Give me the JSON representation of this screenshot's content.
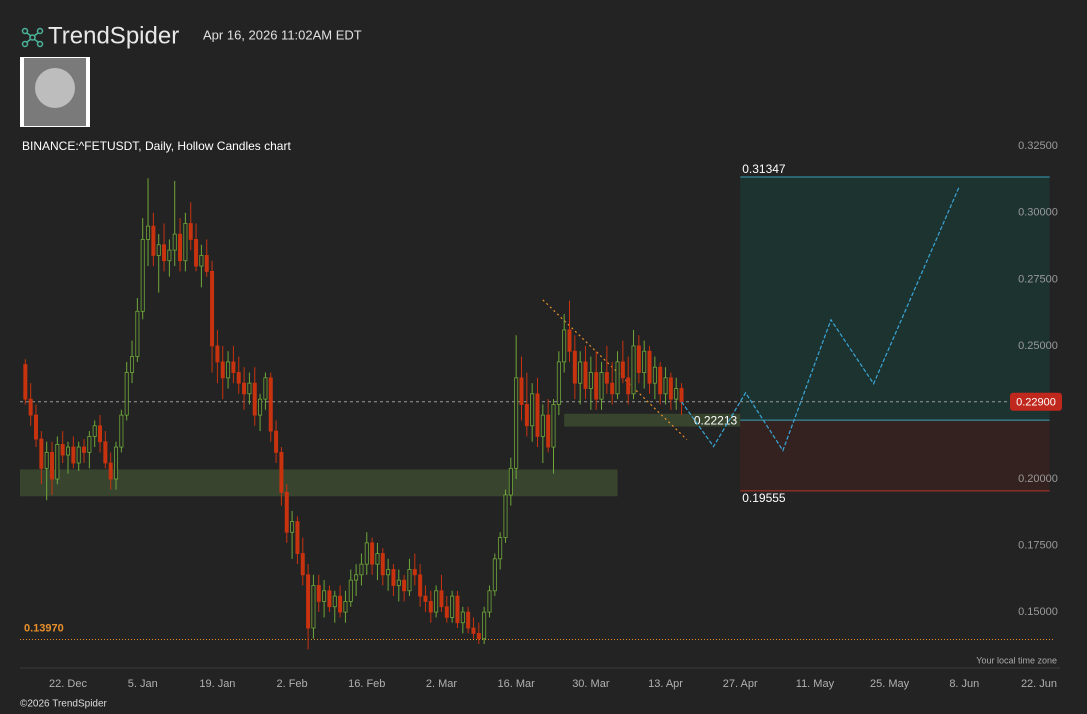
{
  "brand": "TrendSpider",
  "timestamp": "Apr 16, 2026 11:02AM EDT",
  "footer": "©2026 TrendSpider",
  "timezone_note": "Your local time zone",
  "chart_data": {
    "type": "candlestick",
    "title": "BINANCE:^FETUSDT, Daily, Hollow Candles chart",
    "up_color": "#6fa83a",
    "down_color": "#c8330f",
    "xlim": [
      "13. Dec",
      "25. Jun"
    ],
    "ylim": [
      0.135,
      0.333
    ],
    "yticks": [
      {
        "value": 0.15,
        "label": "0.15000"
      },
      {
        "value": 0.175,
        "label": "0.17500"
      },
      {
        "value": 0.2,
        "label": "0.20000"
      },
      {
        "value": 0.25,
        "label": "0.25000"
      },
      {
        "value": 0.275,
        "label": "0.27500"
      },
      {
        "value": 0.3,
        "label": "0.30000"
      },
      {
        "value": 0.325,
        "label": "0.32500"
      }
    ],
    "xticks": [
      "22. Dec",
      "5. Jan",
      "19. Jan",
      "2. Feb",
      "16. Feb",
      "2. Mar",
      "16. Mar",
      "30. Mar",
      "13. Apr",
      "27. Apr",
      "11. May",
      "25. May",
      "8. Jun",
      "22. Jun"
    ],
    "x": [
      "14. Dec",
      "15. Dec",
      "16. Dec",
      "17. Dec",
      "18. Dec",
      "19. Dec",
      "20. Dec",
      "21. Dec",
      "22. Dec",
      "23. Dec",
      "24. Dec",
      "25. Dec",
      "26. Dec",
      "27. Dec",
      "28. Dec",
      "29. Dec",
      "30. Dec",
      "31. Dec",
      "1. Jan",
      "2. Jan",
      "3. Jan",
      "4. Jan",
      "5. Jan",
      "6. Jan",
      "7. Jan",
      "8. Jan",
      "9. Jan",
      "10. Jan",
      "11. Jan",
      "12. Jan",
      "13. Jan",
      "14. Jan",
      "15. Jan",
      "16. Jan",
      "17. Jan",
      "18. Jan",
      "19. Jan",
      "20. Jan",
      "21. Jan",
      "22. Jan",
      "23. Jan",
      "24. Jan",
      "25. Jan",
      "26. Jan",
      "27. Jan",
      "28. Jan",
      "29. Jan",
      "30. Jan",
      "31. Jan",
      "1. Feb",
      "2. Feb",
      "3. Feb",
      "4. Feb",
      "5. Feb",
      "6. Feb",
      "7. Feb",
      "8. Feb",
      "9. Feb",
      "10. Feb",
      "11. Feb",
      "12. Feb",
      "13. Feb",
      "14. Feb",
      "15. Feb",
      "16. Feb",
      "17. Feb",
      "18. Feb",
      "19. Feb",
      "20. Feb",
      "21. Feb",
      "22. Feb",
      "23. Feb",
      "24. Feb",
      "25. Feb",
      "26. Feb",
      "27. Feb",
      "28. Feb",
      "1. Mar",
      "2. Mar",
      "3. Mar",
      "4. Mar",
      "5. Mar",
      "6. Mar",
      "7. Mar",
      "8. Mar",
      "9. Mar",
      "10. Mar",
      "11. Mar",
      "12. Mar",
      "13. Mar",
      "14. Mar",
      "15. Mar",
      "16. Mar",
      "17. Mar",
      "18. Mar",
      "19. Mar",
      "20. Mar",
      "21. Mar",
      "22. Mar",
      "23. Mar",
      "24. Mar",
      "25. Mar",
      "26. Mar",
      "27. Mar",
      "28. Mar",
      "29. Mar",
      "30. Mar",
      "31. Mar",
      "1. Apr",
      "2. Apr",
      "3. Apr",
      "4. Apr",
      "5. Apr",
      "6. Apr",
      "7. Apr",
      "8. Apr",
      "9. Apr",
      "10. Apr",
      "11. Apr",
      "12. Apr",
      "13. Apr",
      "14. Apr",
      "15. Apr",
      "16. Apr"
    ],
    "ohlc": [
      [
        0.243,
        0.245,
        0.228,
        0.23
      ],
      [
        0.23,
        0.236,
        0.22,
        0.224
      ],
      [
        0.224,
        0.228,
        0.212,
        0.215
      ],
      [
        0.215,
        0.218,
        0.198,
        0.204
      ],
      [
        0.204,
        0.214,
        0.192,
        0.21
      ],
      [
        0.21,
        0.214,
        0.194,
        0.2
      ],
      [
        0.2,
        0.216,
        0.198,
        0.213
      ],
      [
        0.213,
        0.218,
        0.206,
        0.209
      ],
      [
        0.209,
        0.214,
        0.202,
        0.212
      ],
      [
        0.212,
        0.216,
        0.204,
        0.206
      ],
      [
        0.206,
        0.214,
        0.203,
        0.212
      ],
      [
        0.212,
        0.215,
        0.206,
        0.21
      ],
      [
        0.21,
        0.218,
        0.204,
        0.216
      ],
      [
        0.216,
        0.222,
        0.212,
        0.22
      ],
      [
        0.22,
        0.224,
        0.21,
        0.214
      ],
      [
        0.214,
        0.218,
        0.204,
        0.206
      ],
      [
        0.206,
        0.21,
        0.196,
        0.2
      ],
      [
        0.2,
        0.214,
        0.196,
        0.212
      ],
      [
        0.212,
        0.226,
        0.21,
        0.224
      ],
      [
        0.224,
        0.244,
        0.222,
        0.24
      ],
      [
        0.24,
        0.252,
        0.236,
        0.246
      ],
      [
        0.246,
        0.268,
        0.244,
        0.263
      ],
      [
        0.263,
        0.298,
        0.26,
        0.29
      ],
      [
        0.29,
        0.313,
        0.28,
        0.295
      ],
      [
        0.295,
        0.3,
        0.28,
        0.284
      ],
      [
        0.284,
        0.292,
        0.27,
        0.288
      ],
      [
        0.288,
        0.296,
        0.278,
        0.282
      ],
      [
        0.282,
        0.29,
        0.276,
        0.286
      ],
      [
        0.286,
        0.312,
        0.28,
        0.292
      ],
      [
        0.292,
        0.298,
        0.278,
        0.282
      ],
      [
        0.282,
        0.3,
        0.278,
        0.296
      ],
      [
        0.296,
        0.304,
        0.286,
        0.29
      ],
      [
        0.29,
        0.296,
        0.278,
        0.28
      ],
      [
        0.28,
        0.288,
        0.272,
        0.284
      ],
      [
        0.284,
        0.29,
        0.276,
        0.278
      ],
      [
        0.278,
        0.282,
        0.24,
        0.25
      ],
      [
        0.25,
        0.256,
        0.236,
        0.244
      ],
      [
        0.244,
        0.25,
        0.23,
        0.238
      ],
      [
        0.238,
        0.248,
        0.234,
        0.244
      ],
      [
        0.244,
        0.25,
        0.236,
        0.24
      ],
      [
        0.24,
        0.246,
        0.232,
        0.236
      ],
      [
        0.236,
        0.242,
        0.226,
        0.232
      ],
      [
        0.232,
        0.24,
        0.228,
        0.236
      ],
      [
        0.236,
        0.242,
        0.22,
        0.224
      ],
      [
        0.224,
        0.232,
        0.218,
        0.23
      ],
      [
        0.23,
        0.24,
        0.226,
        0.238
      ],
      [
        0.238,
        0.24,
        0.214,
        0.218
      ],
      [
        0.218,
        0.222,
        0.206,
        0.21
      ],
      [
        0.21,
        0.212,
        0.19,
        0.195
      ],
      [
        0.195,
        0.198,
        0.176,
        0.18
      ],
      [
        0.18,
        0.188,
        0.17,
        0.184
      ],
      [
        0.184,
        0.186,
        0.168,
        0.172
      ],
      [
        0.172,
        0.178,
        0.16,
        0.164
      ],
      [
        0.164,
        0.168,
        0.136,
        0.144
      ],
      [
        0.144,
        0.164,
        0.14,
        0.16
      ],
      [
        0.16,
        0.164,
        0.15,
        0.154
      ],
      [
        0.154,
        0.162,
        0.148,
        0.158
      ],
      [
        0.158,
        0.16,
        0.15,
        0.152
      ],
      [
        0.152,
        0.158,
        0.146,
        0.156
      ],
      [
        0.156,
        0.16,
        0.148,
        0.15
      ],
      [
        0.15,
        0.158,
        0.146,
        0.154
      ],
      [
        0.154,
        0.166,
        0.152,
        0.162
      ],
      [
        0.162,
        0.168,
        0.156,
        0.164
      ],
      [
        0.164,
        0.172,
        0.16,
        0.168
      ],
      [
        0.168,
        0.18,
        0.164,
        0.176
      ],
      [
        0.176,
        0.178,
        0.164,
        0.168
      ],
      [
        0.168,
        0.176,
        0.162,
        0.172
      ],
      [
        0.172,
        0.174,
        0.16,
        0.164
      ],
      [
        0.164,
        0.17,
        0.158,
        0.166
      ],
      [
        0.166,
        0.168,
        0.156,
        0.16
      ],
      [
        0.16,
        0.166,
        0.154,
        0.162
      ],
      [
        0.162,
        0.164,
        0.154,
        0.158
      ],
      [
        0.158,
        0.17,
        0.156,
        0.166
      ],
      [
        0.166,
        0.172,
        0.16,
        0.164
      ],
      [
        0.164,
        0.168,
        0.152,
        0.156
      ],
      [
        0.156,
        0.16,
        0.15,
        0.154
      ],
      [
        0.154,
        0.158,
        0.146,
        0.15
      ],
      [
        0.15,
        0.16,
        0.148,
        0.158
      ],
      [
        0.158,
        0.164,
        0.15,
        0.152
      ],
      [
        0.152,
        0.156,
        0.146,
        0.148
      ],
      [
        0.148,
        0.158,
        0.146,
        0.156
      ],
      [
        0.156,
        0.158,
        0.144,
        0.146
      ],
      [
        0.146,
        0.152,
        0.142,
        0.15
      ],
      [
        0.15,
        0.152,
        0.142,
        0.144
      ],
      [
        0.144,
        0.148,
        0.14,
        0.142
      ],
      [
        0.142,
        0.146,
        0.138,
        0.14
      ],
      [
        0.14,
        0.152,
        0.138,
        0.15
      ],
      [
        0.15,
        0.16,
        0.148,
        0.158
      ],
      [
        0.158,
        0.172,
        0.156,
        0.17
      ],
      [
        0.17,
        0.18,
        0.166,
        0.178
      ],
      [
        0.178,
        0.196,
        0.176,
        0.194
      ],
      [
        0.194,
        0.208,
        0.19,
        0.204
      ],
      [
        0.204,
        0.254,
        0.2,
        0.238
      ],
      [
        0.238,
        0.246,
        0.222,
        0.228
      ],
      [
        0.228,
        0.24,
        0.216,
        0.22
      ],
      [
        0.22,
        0.236,
        0.214,
        0.232
      ],
      [
        0.232,
        0.238,
        0.212,
        0.216
      ],
      [
        0.216,
        0.228,
        0.206,
        0.224
      ],
      [
        0.224,
        0.23,
        0.21,
        0.212
      ],
      [
        0.212,
        0.23,
        0.202,
        0.228
      ],
      [
        0.228,
        0.248,
        0.224,
        0.244
      ],
      [
        0.244,
        0.262,
        0.24,
        0.256
      ],
      [
        0.256,
        0.267,
        0.244,
        0.248
      ],
      [
        0.248,
        0.254,
        0.23,
        0.236
      ],
      [
        0.236,
        0.248,
        0.228,
        0.244
      ],
      [
        0.244,
        0.25,
        0.23,
        0.234
      ],
      [
        0.234,
        0.246,
        0.226,
        0.24
      ],
      [
        0.24,
        0.248,
        0.226,
        0.23
      ],
      [
        0.23,
        0.244,
        0.226,
        0.24
      ],
      [
        0.24,
        0.25,
        0.232,
        0.236
      ],
      [
        0.236,
        0.244,
        0.228,
        0.232
      ],
      [
        0.232,
        0.248,
        0.23,
        0.244
      ],
      [
        0.244,
        0.252,
        0.236,
        0.238
      ],
      [
        0.238,
        0.246,
        0.228,
        0.232
      ],
      [
        0.232,
        0.256,
        0.23,
        0.25
      ],
      [
        0.25,
        0.254,
        0.236,
        0.24
      ],
      [
        0.24,
        0.252,
        0.234,
        0.248
      ],
      [
        0.248,
        0.25,
        0.232,
        0.236
      ],
      [
        0.236,
        0.246,
        0.23,
        0.242
      ],
      [
        0.242,
        0.244,
        0.228,
        0.232
      ],
      [
        0.232,
        0.242,
        0.228,
        0.238
      ],
      [
        0.238,
        0.24,
        0.226,
        0.23
      ],
      [
        0.23,
        0.238,
        0.226,
        0.234
      ],
      [
        0.234,
        0.236,
        0.224,
        0.229
      ]
    ],
    "zones": [
      {
        "x": [
          "13. Dec",
          "4. Apr"
        ],
        "y": [
          0.1935,
          0.2036
        ],
        "color": "#3c4a30"
      },
      {
        "x": [
          "25. Mar",
          "5. May"
        ],
        "y": [
          0.2197,
          0.2245
        ],
        "color": "#3c4a30"
      }
    ],
    "level": {
      "value": 0.1397,
      "label": "0.13970",
      "color": "#e8902a"
    },
    "current": {
      "value": 0.229,
      "label": "0.22900",
      "color": "#c0281e"
    },
    "position": {
      "x": [
        "27. Apr",
        "24. Jun"
      ],
      "target": {
        "value": 0.31347,
        "label": "0.31347"
      },
      "entry": {
        "value": 0.22213,
        "label": "0.22213"
      },
      "stop": {
        "value": 0.19555,
        "label": "0.19555"
      },
      "target_color": "#3aa0b5",
      "stop_color": "#b7352a"
    },
    "projection": {
      "x": [
        "16. Apr",
        "22. Apr",
        "28. Apr",
        "5. May",
        "14. May",
        "22. May",
        "7. Jun"
      ],
      "values": [
        0.229,
        0.2122,
        0.2324,
        0.2107,
        0.2598,
        0.2358,
        0.3096
      ],
      "color": "#3aa6d8"
    },
    "trendline": {
      "x": [
        "21. Mar",
        "17. Apr"
      ],
      "values": [
        0.2673,
        0.2148
      ],
      "color": "#e8902a"
    }
  }
}
